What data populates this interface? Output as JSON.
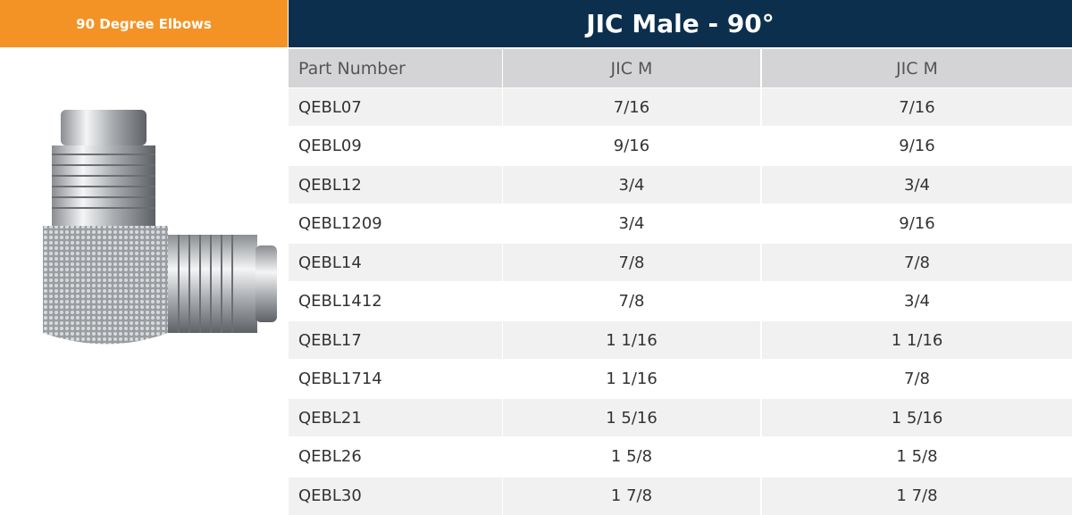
{
  "header": {
    "left_title": "90 Degree Elbows"
  },
  "table": {
    "title": "JIC Male - 90°",
    "columns": [
      "Part Number",
      "JIC M",
      "JIC M"
    ],
    "rows": [
      [
        "QEBL07",
        "7/16",
        "7/16"
      ],
      [
        "QEBL09",
        "9/16",
        "9/16"
      ],
      [
        "QEBL12",
        "3/4",
        "3/4"
      ],
      [
        "QEBL1209",
        "3/4",
        "9/16"
      ],
      [
        "QEBL14",
        "7/8",
        "7/8"
      ],
      [
        "QEBL1412",
        "7/8",
        "3/4"
      ],
      [
        "QEBL17",
        "1 1/16",
        "1 1/16"
      ],
      [
        "QEBL1714",
        "1 1/16",
        "7/8"
      ],
      [
        "QEBL21",
        "1 5/16",
        "1 5/16"
      ],
      [
        "QEBL26",
        "1 5/8",
        "1 5/8"
      ],
      [
        "QEBL30",
        "1 7/8",
        "1 7/8"
      ]
    ]
  }
}
